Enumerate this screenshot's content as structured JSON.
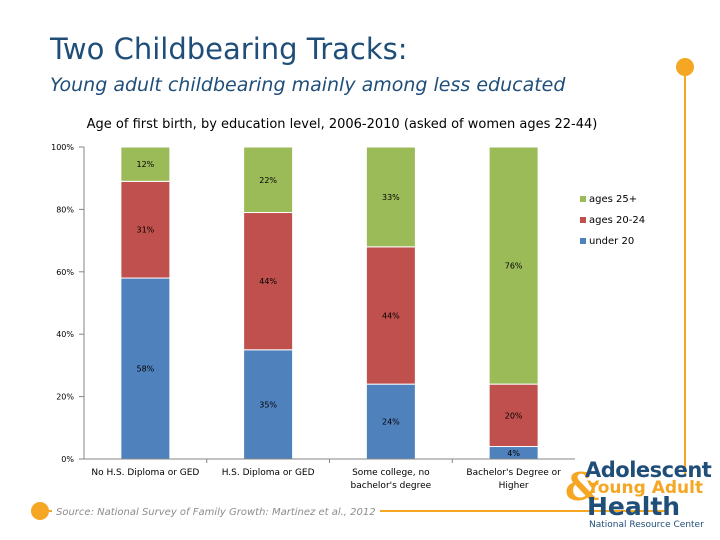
{
  "slide": {
    "title": "Two Childbearing Tracks:",
    "subtitle": "Young adult childbearing mainly among less educated",
    "source": "Source: National Survey of Family Growth: Martinez et al., 2012"
  },
  "logo": {
    "line1": "Adolescent",
    "amp": "&",
    "line2": "Young Adult",
    "line3": "Health",
    "line4": "National Resource Center"
  },
  "colors": {
    "under20": "#4f81bd",
    "ages2024": "#c0504d",
    "ages25plus": "#9bbb59",
    "title": "#1f4e79",
    "accent": "#f5a623"
  },
  "chart_data": {
    "type": "bar",
    "stacked": true,
    "title": "Age of first birth, by education level, 2006-2010 (asked of women ages 22-44)",
    "categories": [
      "No H.S. Diploma or GED",
      "H.S. Diploma or GED",
      "Some college, no bachelor's degree",
      "Bachelor's Degree or Higher"
    ],
    "category_lines": [
      [
        "No H.S. Diploma or GED"
      ],
      [
        "H.S. Diploma or GED"
      ],
      [
        "Some college, no",
        "bachelor's degree"
      ],
      [
        "Bachelor's Degree or",
        "Higher"
      ]
    ],
    "series": [
      {
        "name": "under 20",
        "key": "under20",
        "values": [
          58,
          35,
          24,
          4
        ],
        "labels": [
          "58%",
          "35%",
          "24%",
          "4%"
        ]
      },
      {
        "name": "ages 20-24",
        "key": "ages2024",
        "values": [
          31,
          44,
          44,
          20
        ],
        "labels": [
          "31%",
          "44%",
          "44%",
          "20%"
        ]
      },
      {
        "name": "ages 25+",
        "key": "ages25plus",
        "values": [
          12,
          22,
          33,
          76
        ],
        "labels": [
          "12%",
          "22%",
          "33%",
          "76%"
        ]
      }
    ],
    "legend_order": [
      "ages 25+",
      "ages 20-24",
      "under 20"
    ],
    "legend_position": "right",
    "ylim": [
      0,
      100
    ],
    "yticks": [
      0,
      20,
      40,
      60,
      80,
      100
    ],
    "ytick_labels": [
      "0%",
      "20%",
      "40%",
      "60%",
      "80%",
      "100%"
    ],
    "xlabel": "",
    "ylabel": ""
  }
}
